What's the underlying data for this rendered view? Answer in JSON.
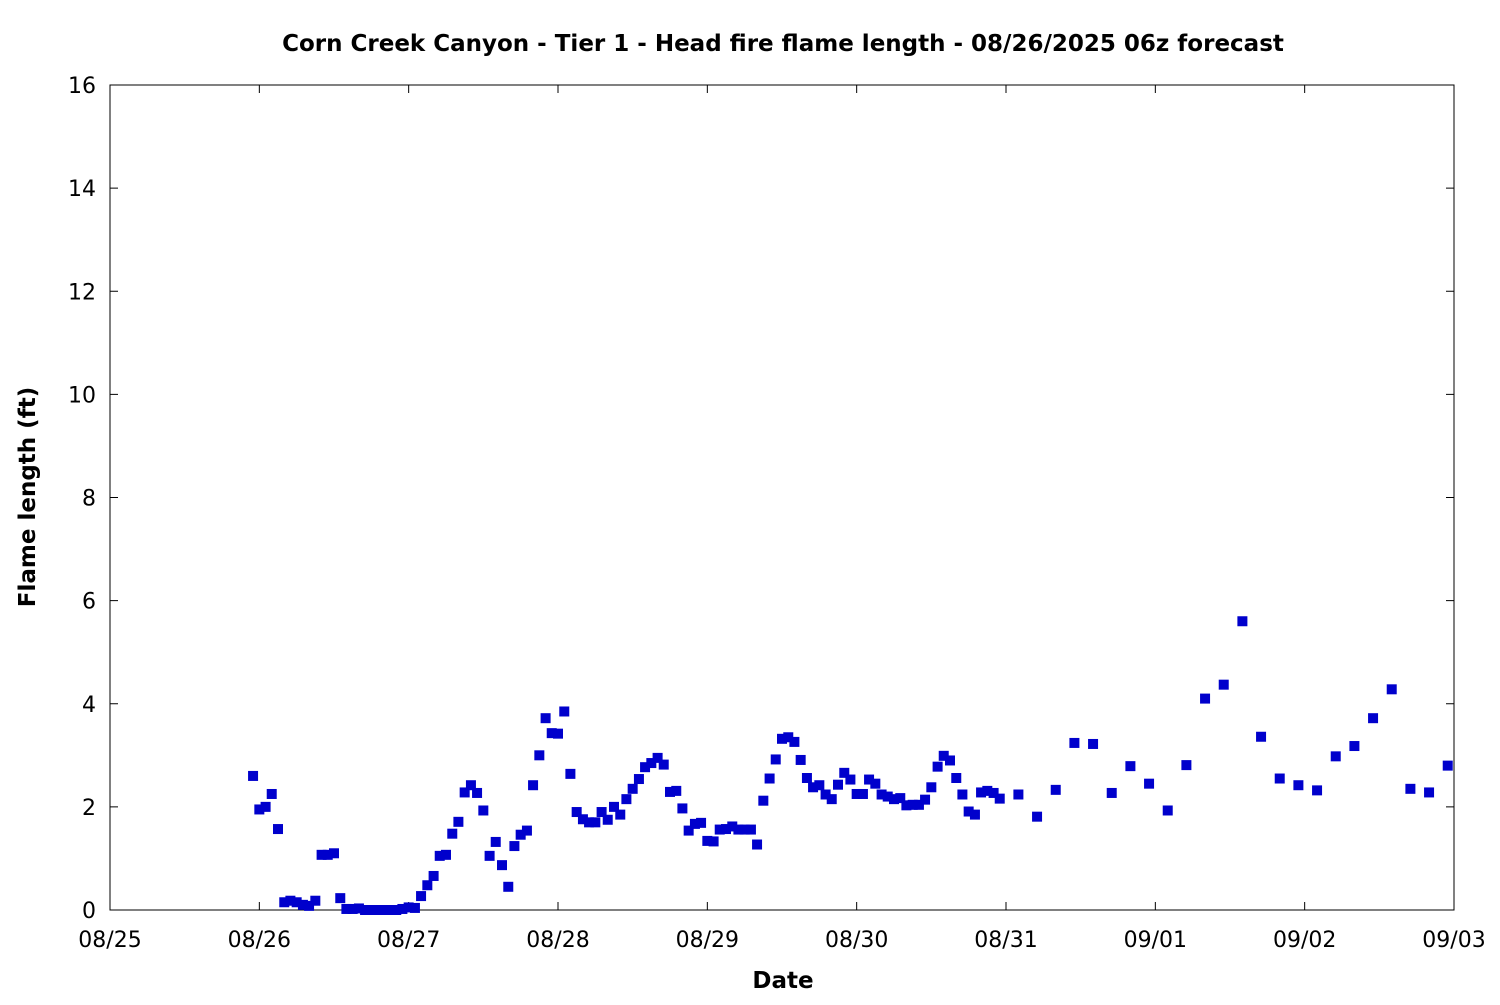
{
  "chart_data": {
    "type": "scatter",
    "title": "Corn Creek Canyon - Tier 1 - Head fire flame length - 08/26/2025 06z forecast",
    "xlabel": "Date",
    "ylabel": "Flame length (ft)",
    "x_ticks": [
      "08/25",
      "08/26",
      "08/27",
      "08/28",
      "08/29",
      "08/30",
      "08/31",
      "09/01",
      "09/02",
      "09/03"
    ],
    "y_ticks": [
      "0",
      "2",
      "4",
      "6",
      "8",
      "10",
      "12",
      "14",
      "16"
    ],
    "xlim_days": [
      0,
      9
    ],
    "ylim": [
      0,
      16
    ],
    "grid": false,
    "legend": "none",
    "marker_color": "#0000cc",
    "series": [
      {
        "x_days": [
          0.958,
          1.0,
          1.042,
          1.083,
          1.125,
          1.167,
          1.208,
          1.25,
          1.292,
          1.333,
          1.375,
          1.417,
          1.458,
          1.5,
          1.542,
          1.583,
          1.625,
          1.667,
          1.708,
          1.75,
          1.792,
          1.833,
          1.875,
          1.917,
          1.958,
          2.0,
          2.042,
          2.083,
          2.125,
          2.167,
          2.208,
          2.25,
          2.292,
          2.333,
          2.375,
          2.417,
          2.458,
          2.5,
          2.542,
          2.583,
          2.625,
          2.667,
          2.708,
          2.75,
          2.792,
          2.833,
          2.875,
          2.917,
          2.958,
          3.0,
          3.042,
          3.083,
          3.125,
          3.167,
          3.208,
          3.25,
          3.292,
          3.333,
          3.375,
          3.417,
          3.458,
          3.5,
          3.542,
          3.583,
          3.625,
          3.667,
          3.708,
          3.75,
          3.792,
          3.833,
          3.875,
          3.917,
          3.958,
          4.0,
          4.042,
          4.083,
          4.125,
          4.167,
          4.208,
          4.25,
          4.292,
          4.333,
          4.375,
          4.417,
          4.458,
          4.5,
          4.542,
          4.583,
          4.625,
          4.667,
          4.708,
          4.75,
          4.792,
          4.833,
          4.875,
          4.917,
          4.958,
          5.0,
          5.042,
          5.083,
          5.125,
          5.167,
          5.208,
          5.25,
          5.292,
          5.333,
          5.375,
          5.417,
          5.458,
          5.5,
          5.542,
          5.583,
          5.625,
          5.667,
          5.708,
          5.75,
          5.792,
          5.833,
          5.875,
          5.917,
          5.958,
          6.083,
          6.208,
          6.333,
          6.458,
          6.583,
          6.708,
          6.833,
          6.958,
          7.083,
          7.208,
          7.333,
          7.458,
          7.583,
          7.708,
          7.833,
          7.958,
          8.083,
          8.208,
          8.333,
          8.458,
          8.583,
          8.708,
          8.833,
          8.958
        ],
        "values": [
          2.6,
          1.95,
          2.0,
          2.25,
          1.57,
          0.15,
          0.18,
          0.15,
          0.1,
          0.08,
          0.18,
          1.07,
          1.07,
          1.1,
          0.23,
          0.02,
          0.02,
          0.03,
          0.0,
          0.0,
          0.0,
          0.0,
          0.0,
          0.0,
          0.02,
          0.05,
          0.04,
          0.27,
          0.48,
          0.66,
          1.05,
          1.07,
          1.48,
          1.71,
          2.28,
          2.42,
          2.27,
          1.93,
          1.05,
          1.32,
          0.87,
          0.45,
          1.24,
          1.46,
          1.54,
          2.42,
          3.0,
          3.72,
          3.43,
          3.42,
          3.85,
          2.64,
          1.9,
          1.76,
          1.7,
          1.7,
          1.9,
          1.75,
          2.0,
          1.85,
          2.15,
          2.35,
          2.54,
          2.77,
          2.85,
          2.95,
          2.82,
          2.29,
          2.31,
          1.97,
          1.54,
          1.67,
          1.69,
          1.34,
          1.33,
          1.56,
          1.57,
          1.62,
          1.56,
          1.56,
          1.56,
          1.27,
          2.12,
          2.55,
          2.92,
          3.32,
          3.35,
          3.26,
          2.91,
          2.56,
          2.38,
          2.42,
          2.24,
          2.15,
          2.43,
          2.66,
          2.53,
          2.25,
          2.25,
          2.53,
          2.45,
          2.24,
          2.2,
          2.15,
          2.17,
          2.03,
          2.04,
          2.04,
          2.14,
          2.38,
          2.78,
          2.99,
          2.9,
          2.56,
          2.24,
          1.91,
          1.85,
          2.28,
          2.31,
          2.27,
          2.16,
          2.24,
          1.81,
          2.33,
          3.24,
          3.22,
          2.27,
          2.79,
          2.45,
          1.93,
          2.81,
          4.1,
          4.37,
          5.6,
          3.36,
          2.55,
          2.42,
          2.32,
          2.98,
          3.18,
          3.72,
          4.28,
          2.35,
          2.28,
          2.8
        ]
      }
    ]
  }
}
